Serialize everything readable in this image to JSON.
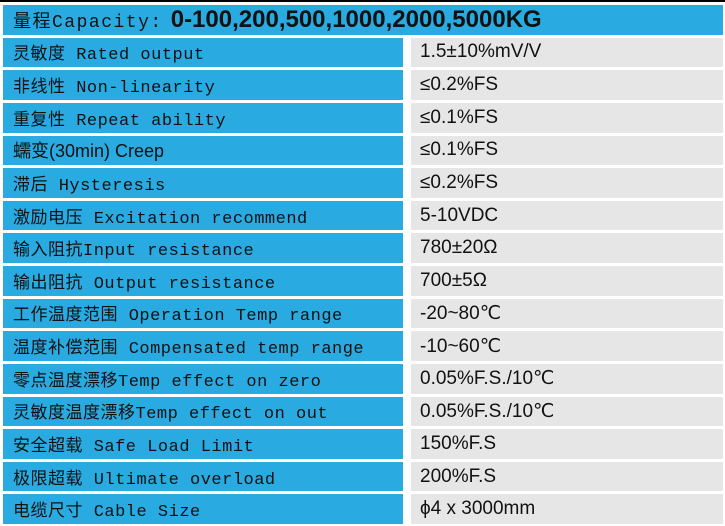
{
  "colors": {
    "cyan": "#29ABE2",
    "gray": "#E6E6E6",
    "text": "#111111"
  },
  "table": {
    "header": {
      "label": "量程Capacity:",
      "value": "0-100,200,500,1000,2000,5000KG"
    },
    "rows": [
      {
        "label": "灵敏度 Rated output",
        "value": "1.5±10%mV/V"
      },
      {
        "label": "非线性 Non-linearity",
        "value": "≤0.2%FS"
      },
      {
        "label": "重复性 Repeat ability",
        "value": "≤0.1%FS"
      },
      {
        "label": "蠕变(30min) Creep",
        "value": "≤0.1%FS"
      },
      {
        "label": "滞后 Hysteresis",
        "value": "≤0.2%FS"
      },
      {
        "label": "激励电压 Excitation recommend",
        "value": "5-10VDC"
      },
      {
        "label": "输入阻抗Input resistance",
        "value": "780±20Ω"
      },
      {
        "label": "输出阻抗 Output resistance",
        "value": "700±5Ω"
      },
      {
        "label": "工作温度范围 Operation Temp range",
        "value": "-20~80℃"
      },
      {
        "label": "温度补偿范围 Compensated temp range",
        "value": "-10~60℃"
      },
      {
        "label": "零点温度漂移Temp effect on zero",
        "value": "0.05%F.S./10℃"
      },
      {
        "label": "灵敏度温度漂移Temp effect on out",
        "value": "0.05%F.S./10℃"
      },
      {
        "label": "安全超载 Safe Load Limit",
        "value": "150%F.S"
      },
      {
        "label": "极限超载 Ultimate overload",
        "value": "200%F.S"
      },
      {
        "label": "电缆尺寸 Cable Size",
        "value": "ϕ4 x 3000mm"
      }
    ]
  }
}
